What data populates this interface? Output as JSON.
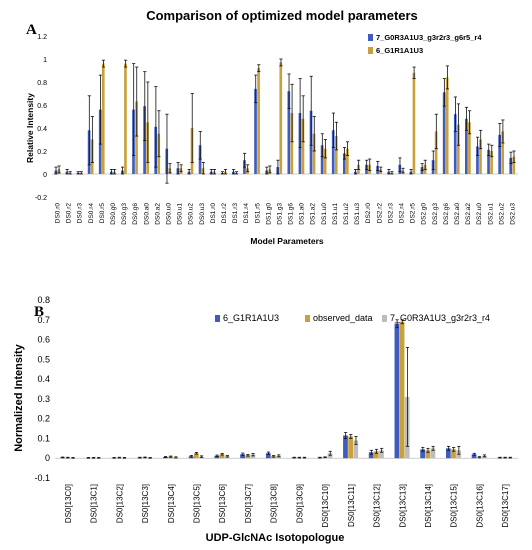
{
  "colors": {
    "blue": "#3F5BBE",
    "gold": "#C9A13A",
    "gray": "#BDBDBD",
    "err": "#111111"
  },
  "panel_a_label": "A",
  "panel_b_label": "B",
  "chart_data": [
    {
      "type": "bar",
      "title": "Comparison of optimized model parameters",
      "xlabel": "Model Parameters",
      "ylabel": "Relative Intensity",
      "ylim": [
        -0.2,
        1.2
      ],
      "yticks": [
        -0.2,
        0,
        0.2,
        0.4,
        0.6,
        0.8,
        1,
        1.2
      ],
      "ytick_labels": [
        "-0.2",
        "0",
        "0.2",
        "0.4",
        "0.6",
        "0.8",
        "1",
        "1.2"
      ],
      "legend_position": "top-right",
      "categories": [
        "DS0.r0",
        "DS0.r2",
        "DS0.r3",
        "DS0.r4",
        "DS0.r5",
        "DS0.g0",
        "DS0.g3",
        "DS0.g6",
        "DS0.a0",
        "DS0.a2",
        "DS0.u0",
        "DS0.u1",
        "DS0.u2",
        "DS0.u3",
        "DS1.r0",
        "DS1.r2",
        "DS1.r3",
        "DS1.r4",
        "DS1.r5",
        "DS1.g0",
        "DS1.g3",
        "DS1.g6",
        "DS1.a0",
        "DS1.a2",
        "DS1.u0",
        "DS1.u1",
        "DS1.u2",
        "DS1.u3",
        "DS2.r0",
        "DS2.r2",
        "DS2.r3",
        "DS2.r4",
        "DS2.r5",
        "DS2.g0",
        "DS2.g3",
        "DS2.g6",
        "DS2.a0",
        "DS2.a2",
        "DS2.u0",
        "DS2.u1",
        "DS2.u2",
        "DS2.u3"
      ],
      "series": [
        {
          "name": "7_G0R3A1U3_g3r2r3_g6r5_r4",
          "color_key": "blue",
          "values": [
            0.03,
            0.02,
            0.01,
            0.38,
            0.56,
            0.02,
            0.03,
            0.56,
            0.59,
            0.41,
            0.22,
            0.05,
            0.02,
            0.25,
            0.02,
            0.01,
            0.02,
            0.12,
            0.74,
            0.03,
            0.06,
            0.72,
            0.53,
            0.55,
            0.25,
            0.38,
            0.18,
            0.02,
            0.08,
            0.07,
            0.02,
            0.08,
            0.02,
            0.06,
            0.12,
            0.71,
            0.52,
            0.48,
            0.24,
            0.21,
            0.34,
            0.14
          ],
          "errors": [
            0.03,
            0.02,
            0.01,
            0.3,
            0.3,
            0.02,
            0.03,
            0.4,
            0.3,
            0.35,
            0.3,
            0.05,
            0.02,
            0.12,
            0.02,
            0.01,
            0.02,
            0.06,
            0.12,
            0.03,
            0.06,
            0.15,
            0.3,
            0.3,
            0.1,
            0.15,
            0.05,
            0.02,
            0.04,
            0.04,
            0.02,
            0.06,
            0.02,
            0.03,
            0.08,
            0.12,
            0.15,
            0.1,
            0.08,
            0.05,
            0.1,
            0.05
          ]
        },
        {
          "name": "6_G1R1A1U3",
          "color_key": "gold",
          "values": [
            0.04,
            0.01,
            0.01,
            0.3,
            0.96,
            0.02,
            0.96,
            0.63,
            0.45,
            0.35,
            0.05,
            0.05,
            0.4,
            0.05,
            0.02,
            0.02,
            0.01,
            0.05,
            0.92,
            0.04,
            0.97,
            0.53,
            0.48,
            0.35,
            0.22,
            0.33,
            0.22,
            0.08,
            0.08,
            0.04,
            0.01,
            0.03,
            0.88,
            0.08,
            0.37,
            0.84,
            0.43,
            0.45,
            0.3,
            0.2,
            0.37,
            0.15
          ],
          "errors": [
            0.03,
            0.01,
            0.01,
            0.2,
            0.03,
            0.02,
            0.03,
            0.3,
            0.35,
            0.2,
            0.04,
            0.03,
            0.3,
            0.05,
            0.02,
            0.02,
            0.01,
            0.03,
            0.03,
            0.03,
            0.03,
            0.25,
            0.2,
            0.15,
            0.08,
            0.12,
            0.06,
            0.04,
            0.05,
            0.02,
            0.01,
            0.02,
            0.05,
            0.04,
            0.15,
            0.1,
            0.18,
            0.1,
            0.08,
            0.05,
            0.1,
            0.05
          ]
        }
      ]
    },
    {
      "type": "bar",
      "title": "",
      "xlabel": "UDP-GlcNAc Isotopologue",
      "ylabel": "Normalized Intensity",
      "ylim": [
        -0.1,
        0.8
      ],
      "yticks": [
        -0.1,
        0,
        0.1,
        0.2,
        0.3,
        0.4,
        0.5,
        0.6,
        0.7,
        0.8
      ],
      "ytick_labels": [
        "-0.1",
        "0",
        "0.1",
        "0.2",
        "0.3",
        "0.4",
        "0.5",
        "0.6",
        "0.7",
        "0.8"
      ],
      "legend_position": "top",
      "categories": [
        "DS0[13C0]",
        "DS0[13C1]",
        "DS0[13C2]",
        "DS0[13C3]",
        "DS0[13C4]",
        "DS0[13C5]",
        "DS0[13C6]",
        "DS0[13C7]",
        "DS0[13C8]",
        "DS0[13C9]",
        "DS0[13C10]",
        "DS0[13C11]",
        "DS0[13C12]",
        "DS0[13C13]",
        "DS0[13C14]",
        "DS0[13C15]",
        "DS0[13C16]",
        "DS0[13C17]"
      ],
      "series": [
        {
          "name": "6_G1R1A1U3",
          "color_key": "blue",
          "values": [
            0.004,
            0.002,
            0.002,
            0.003,
            0.006,
            0.01,
            0.012,
            0.02,
            0.025,
            0.003,
            0.003,
            0.115,
            0.03,
            0.68,
            0.045,
            0.05,
            0.02,
            0.003
          ],
          "errors": [
            0.002,
            0.002,
            0.002,
            0.002,
            0.003,
            0.004,
            0.004,
            0.006,
            0.006,
            0.002,
            0.002,
            0.015,
            0.01,
            0.02,
            0.01,
            0.01,
            0.005,
            0.002
          ]
        },
        {
          "name": "observed_data",
          "color_key": "gold",
          "values": [
            0.003,
            0.002,
            0.003,
            0.004,
            0.008,
            0.025,
            0.02,
            0.015,
            0.01,
            0.003,
            0.005,
            0.11,
            0.035,
            0.69,
            0.04,
            0.045,
            0.005,
            0.003
          ],
          "errors": [
            0.002,
            0.002,
            0.002,
            0.002,
            0.003,
            0.004,
            0.004,
            0.004,
            0.004,
            0.002,
            0.002,
            0.01,
            0.01,
            0.01,
            0.01,
            0.01,
            0.003,
            0.002
          ]
        },
        {
          "name": "7_G0R3A1U3_g3r2r3_r4",
          "color_key": "gray",
          "values": [
            0.002,
            0.002,
            0.002,
            0.002,
            0.004,
            0.008,
            0.01,
            0.018,
            0.012,
            0.003,
            0.025,
            0.09,
            0.04,
            0.31,
            0.05,
            0.04,
            0.012,
            0.003
          ],
          "errors": [
            0.002,
            0.002,
            0.002,
            0.002,
            0.003,
            0.004,
            0.004,
            0.006,
            0.005,
            0.002,
            0.01,
            0.02,
            0.01,
            0.25,
            0.01,
            0.02,
            0.005,
            0.002
          ]
        }
      ]
    }
  ]
}
